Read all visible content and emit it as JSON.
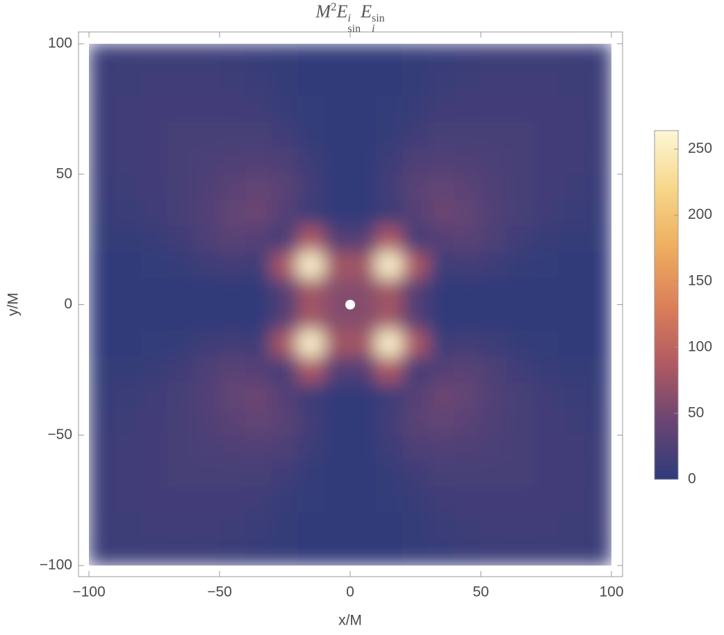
{
  "chart_data": {
    "type": "heatmap",
    "title_parts": [
      "M",
      "2",
      "E",
      "i",
      "sin",
      "E",
      "sin",
      "i"
    ],
    "x_label": "x/M",
    "y_label": "y/M",
    "x": [
      -95,
      -85,
      -75,
      -65,
      -55,
      -45,
      -35,
      -25,
      -15,
      -5,
      5,
      15,
      25,
      35,
      45,
      55,
      65,
      75,
      85,
      95
    ],
    "y": [
      95,
      85,
      75,
      65,
      55,
      45,
      35,
      25,
      15,
      5,
      -5,
      -15,
      -25,
      -35,
      -45,
      -55,
      -65,
      -75,
      -85,
      -95
    ],
    "z": [
      [
        9,
        10,
        10,
        10,
        10,
        8,
        6,
        4,
        1,
        1,
        1,
        1,
        4,
        6,
        8,
        10,
        10,
        10,
        10,
        9
      ],
      [
        10,
        11,
        12,
        13,
        12,
        11,
        8,
        5,
        2,
        1,
        1,
        2,
        5,
        8,
        11,
        12,
        13,
        12,
        11,
        10
      ],
      [
        10,
        12,
        14,
        15,
        15,
        14,
        12,
        7,
        3,
        1,
        1,
        3,
        7,
        12,
        14,
        15,
        15,
        14,
        12,
        10
      ],
      [
        10,
        13,
        15,
        17,
        18,
        18,
        17,
        12,
        5,
        1,
        1,
        5,
        12,
        17,
        18,
        18,
        17,
        15,
        13,
        10
      ],
      [
        10,
        12,
        15,
        18,
        21,
        24,
        25,
        22,
        10,
        1,
        1,
        10,
        22,
        25,
        24,
        21,
        18,
        15,
        12,
        10
      ],
      [
        8,
        11,
        14,
        18,
        24,
        32,
        38,
        32,
        15,
        2,
        2,
        15,
        32,
        38,
        32,
        24,
        18,
        14,
        11,
        8
      ],
      [
        6,
        8,
        12,
        17,
        25,
        38,
        45,
        28,
        10,
        1,
        1,
        10,
        28,
        45,
        38,
        25,
        17,
        12,
        8,
        6
      ],
      [
        4,
        5,
        7,
        12,
        22,
        32,
        28,
        15,
        86,
        27,
        27,
        86,
        15,
        28,
        32,
        22,
        12,
        7,
        5,
        4
      ],
      [
        1,
        2,
        3,
        5,
        10,
        15,
        10,
        86,
        260,
        79,
        79,
        260,
        86,
        10,
        15,
        10,
        5,
        3,
        2,
        1
      ],
      [
        1,
        1,
        1,
        1,
        1,
        2,
        1,
        27,
        79,
        60,
        60,
        79,
        27,
        1,
        2,
        1,
        1,
        1,
        1,
        1
      ],
      [
        1,
        1,
        1,
        1,
        1,
        2,
        1,
        27,
        79,
        60,
        60,
        79,
        27,
        1,
        2,
        1,
        1,
        1,
        1,
        1
      ],
      [
        1,
        2,
        3,
        5,
        10,
        15,
        10,
        86,
        260,
        79,
        79,
        260,
        86,
        10,
        15,
        10,
        5,
        3,
        2,
        1
      ],
      [
        4,
        5,
        7,
        12,
        22,
        32,
        28,
        15,
        86,
        27,
        27,
        86,
        15,
        28,
        32,
        22,
        12,
        7,
        5,
        4
      ],
      [
        6,
        8,
        12,
        17,
        25,
        38,
        45,
        28,
        10,
        1,
        1,
        10,
        28,
        45,
        38,
        25,
        17,
        12,
        8,
        6
      ],
      [
        8,
        11,
        14,
        18,
        24,
        32,
        38,
        32,
        15,
        2,
        2,
        15,
        32,
        38,
        32,
        24,
        18,
        14,
        11,
        8
      ],
      [
        10,
        12,
        15,
        18,
        21,
        24,
        25,
        22,
        10,
        1,
        1,
        10,
        22,
        25,
        24,
        21,
        18,
        15,
        12,
        10
      ],
      [
        10,
        13,
        15,
        17,
        18,
        18,
        17,
        12,
        5,
        1,
        1,
        5,
        12,
        17,
        18,
        18,
        17,
        15,
        13,
        10
      ],
      [
        10,
        12,
        14,
        15,
        15,
        14,
        12,
        7,
        3,
        1,
        1,
        3,
        7,
        12,
        14,
        15,
        15,
        14,
        12,
        10
      ],
      [
        10,
        11,
        12,
        13,
        12,
        11,
        8,
        5,
        2,
        1,
        1,
        2,
        5,
        8,
        11,
        12,
        13,
        12,
        11,
        10
      ],
      [
        9,
        10,
        10,
        10,
        10,
        8,
        6,
        4,
        1,
        1,
        1,
        1,
        4,
        6,
        8,
        10,
        10,
        10,
        10,
        9
      ]
    ],
    "xlim": [
      -100,
      100
    ],
    "ylim": [
      -100,
      100
    ],
    "xticks": [
      {
        "value": -100,
        "label": "−100"
      },
      {
        "value": -50,
        "label": "−50"
      },
      0,
      50,
      100
    ],
    "yticks": [
      {
        "value": -100,
        "label": "−100"
      },
      {
        "value": -50,
        "label": "−50"
      },
      0,
      50,
      100
    ],
    "zlim": [
      0,
      264
    ],
    "zticks": [
      0,
      50,
      100,
      150,
      200,
      250
    ],
    "colormap": [
      "#2f3b7a",
      "#6a4573",
      "#b25a62",
      "#dc805a",
      "#eeae5f",
      "#f7d68a",
      "#fdf7d5"
    ]
  }
}
